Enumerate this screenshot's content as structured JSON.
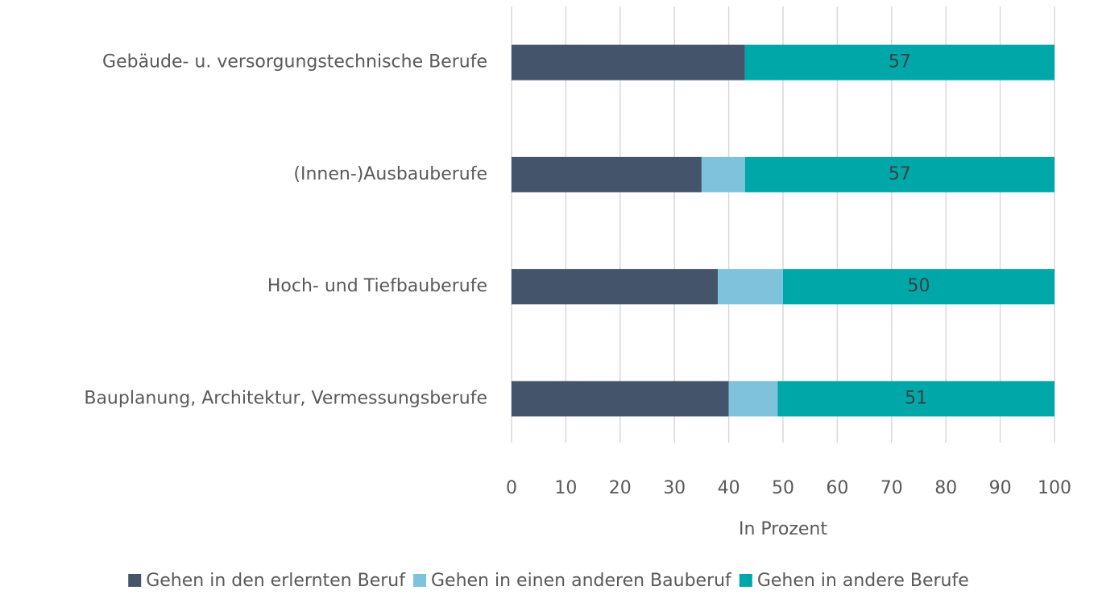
{
  "chart_data": {
    "type": "stacked_barh",
    "x_label": "In Prozent",
    "categories": [
      "Gebäude- u. versorgungstechnische Berufe",
      "(Innen-)Ausbauberufe",
      "Hoch- und Tiefbauberufe",
      "Bauplanung, Architektur, Vermessungsberufe"
    ],
    "series": [
      {
        "name": "Gehen in den erlernten Beruf",
        "color": "#44546a",
        "values": [
          43,
          35,
          38,
          40
        ]
      },
      {
        "name": "Gehen in einen anderen Bauberuf",
        "color": "#7fc2dc",
        "values": [
          0,
          8,
          12,
          9
        ]
      },
      {
        "name": "Gehen in andere Berufe",
        "color": "#00a7a8",
        "values": [
          57,
          57,
          50,
          51
        ]
      }
    ],
    "data_labels_series": 2,
    "xlim": [
      0,
      100
    ],
    "xticks": [
      0,
      10,
      20,
      30,
      40,
      50,
      60,
      70,
      80,
      90,
      100
    ],
    "grid": true,
    "legend": "bottom"
  }
}
